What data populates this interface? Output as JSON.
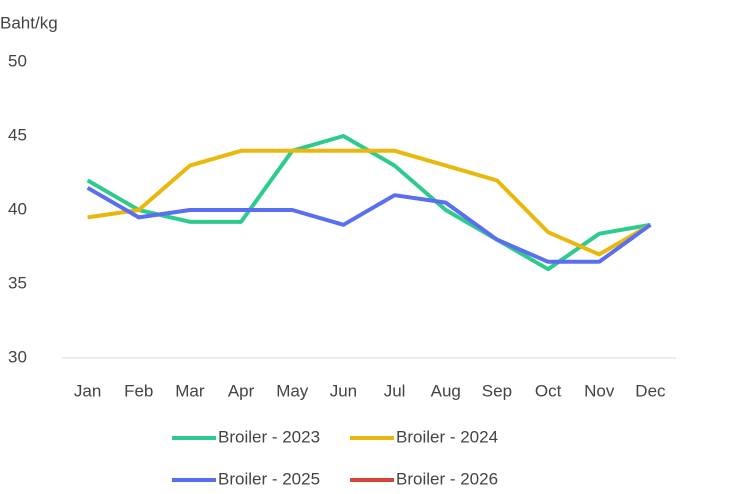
{
  "chart_data": {
    "type": "line",
    "y_label": "Baht/kg",
    "categories": [
      "Jan",
      "Feb",
      "Mar",
      "Apr",
      "May",
      "Jun",
      "Jul",
      "Aug",
      "Sep",
      "Oct",
      "Nov",
      "Dec"
    ],
    "series": [
      {
        "name": "Broiler - 2023",
        "color": "#2ecb8e",
        "values": [
          42,
          40,
          39.2,
          39.2,
          44,
          45,
          43,
          40,
          38,
          36,
          38.4,
          39
        ]
      },
      {
        "name": "Broiler - 2024",
        "color": "#e9b80c",
        "values": [
          39.5,
          40,
          43,
          44,
          44,
          44,
          44,
          43,
          42,
          38.5,
          37,
          39
        ]
      },
      {
        "name": "Broiler - 2025",
        "color": "#5a6ef0",
        "values": [
          41.5,
          39.5,
          40,
          40,
          40,
          39,
          41,
          40.5,
          38,
          36.5,
          36.5,
          39
        ]
      },
      {
        "name": "Broiler - 2026",
        "color": "#d9443a",
        "values": [
          null,
          null,
          null,
          null,
          null,
          null,
          null,
          null,
          null,
          null,
          null,
          null
        ]
      }
    ],
    "ylim": [
      30,
      50
    ],
    "yticks": [
      30,
      35,
      40,
      45,
      50
    ],
    "grid": false
  }
}
